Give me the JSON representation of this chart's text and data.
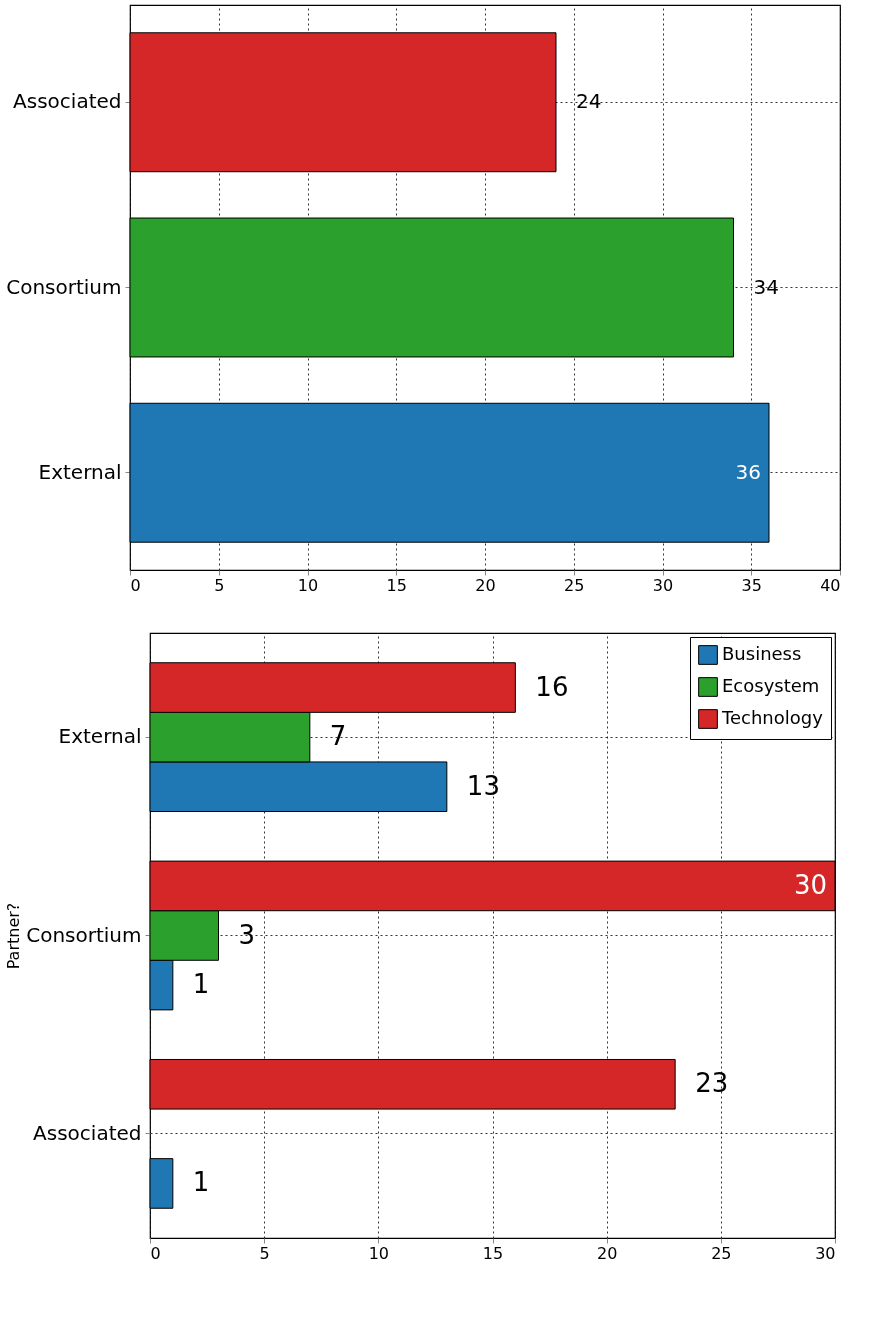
{
  "chart_data": [
    {
      "type": "bar",
      "orientation": "horizontal",
      "categories": [
        "Associated",
        "Consortium",
        "External"
      ],
      "values": [
        24,
        34,
        36
      ],
      "colors": [
        "#d62728",
        "#2ca02c",
        "#1f77b4"
      ],
      "xlim": [
        0,
        40
      ],
      "xticks": [
        0,
        5,
        10,
        15,
        20,
        25,
        30,
        35,
        40
      ],
      "grid": true,
      "data_labels": true
    },
    {
      "type": "bar",
      "orientation": "horizontal",
      "ylabel": "Partner?",
      "categories": [
        "External",
        "Consortium",
        "Associated"
      ],
      "series": [
        {
          "name": "Business",
          "color": "#1f77b4",
          "values": [
            13,
            1,
            1
          ]
        },
        {
          "name": "Ecosystem",
          "color": "#2ca02c",
          "values": [
            7,
            3,
            null
          ]
        },
        {
          "name": "Technology",
          "color": "#d62728",
          "values": [
            16,
            30,
            23
          ]
        }
      ],
      "xlim": [
        0,
        30
      ],
      "xticks": [
        0,
        5,
        10,
        15,
        20,
        25,
        30
      ],
      "grid": true,
      "legend": "top right",
      "data_labels": true
    }
  ]
}
